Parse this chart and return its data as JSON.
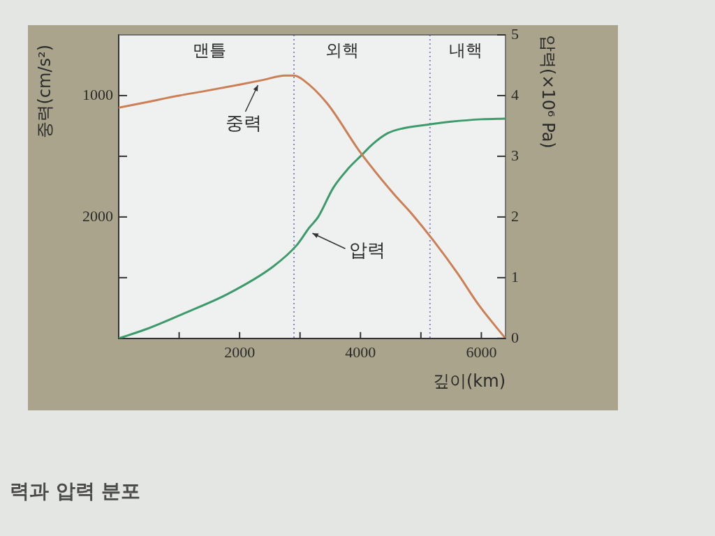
{
  "chart_data": {
    "type": "line",
    "xlabel": "깊이(km)",
    "ylabel": "중력(cm/s²)",
    "y2label": "압력(×10⁶ Pa)",
    "xlim": [
      0,
      6400
    ],
    "xticks": [
      {
        "value": 1000,
        "label": null
      },
      2000,
      {
        "value": 3000,
        "label": null
      },
      4000,
      {
        "value": 5000,
        "label": null
      },
      6000
    ],
    "ylim": [
      3000,
      500
    ],
    "yticks": [
      1000,
      {
        "value": 1500,
        "label": null
      },
      2000,
      {
        "value": 2500,
        "label": null
      }
    ],
    "y2lim": [
      0,
      5
    ],
    "y2ticks": [
      0,
      1,
      2,
      3,
      4,
      5
    ],
    "series": [
      {
        "name": "중력",
        "color": "#cc7f55",
        "x": [
          0,
          500,
          1000,
          1400,
          2000,
          2400,
          2750,
          2900,
          3050,
          3450,
          4000,
          4550,
          4850,
          5200,
          5600,
          5950,
          6250,
          6400
        ],
        "values": [
          1100,
          1050,
          1000,
          965,
          910,
          870,
          835,
          835,
          870,
          1065,
          1470,
          1810,
          1975,
          2190,
          2460,
          2720,
          2910,
          3000
        ]
      },
      {
        "name": "압력",
        "color": "#3d9b6b",
        "axis": "y2",
        "x": [
          0,
          450,
          1100,
          1800,
          2550,
          2950,
          3150,
          3300,
          3550,
          3800,
          4000,
          4200,
          4450,
          4700,
          5100,
          5500,
          6000,
          6400
        ],
        "values": [
          0,
          0.15,
          0.42,
          0.73,
          1.18,
          1.54,
          1.82,
          2.0,
          2.48,
          2.8,
          3.0,
          3.2,
          3.38,
          3.46,
          3.52,
          3.57,
          3.61,
          3.62
        ]
      }
    ],
    "ref_lines": [
      {
        "axis": "x",
        "value": 2900,
        "color": "#8a86c4",
        "line_style": "dotted"
      },
      {
        "axis": "x",
        "value": 5150,
        "color": "#8a86c4",
        "line_style": "dotted"
      }
    ],
    "annotations": [
      "맨틀",
      "외핵",
      "내핵",
      "력과 압력 분포"
    ],
    "grid": false,
    "legend": false,
    "marker": "none",
    "line_style": "solid"
  }
}
